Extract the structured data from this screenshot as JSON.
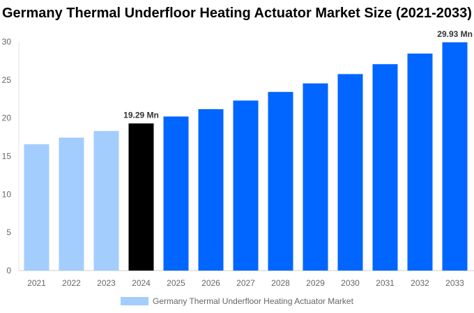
{
  "chart_data": {
    "type": "bar",
    "title": "Germany Thermal Underfloor Heating Actuator Market Size (2021-2033)",
    "categories": [
      "2021",
      "2022",
      "2023",
      "2024",
      "2025",
      "2026",
      "2027",
      "2028",
      "2029",
      "2030",
      "2031",
      "2032",
      "2033"
    ],
    "series": [
      {
        "name": "Germany Thermal Underfloor Heating Actuator Market",
        "values": [
          16.56,
          17.43,
          18.3,
          19.29,
          20.2,
          21.16,
          22.29,
          23.42,
          24.54,
          25.76,
          27.06,
          28.45,
          29.93
        ]
      }
    ],
    "bar_colors": [
      "#a3cdfc",
      "#a3cdfc",
      "#a3cdfc",
      "#000000",
      "#0066ff",
      "#0066ff",
      "#0066ff",
      "#0066ff",
      "#0066ff",
      "#0066ff",
      "#0066ff",
      "#0066ff",
      "#0066ff"
    ],
    "data_labels": {
      "3": "19.29 Mn",
      "12": "29.93 Mn"
    },
    "ylim": [
      0,
      30
    ],
    "yticks": [
      0,
      5,
      10,
      15,
      20,
      25,
      30
    ],
    "grid": false,
    "legend": "bottom"
  }
}
